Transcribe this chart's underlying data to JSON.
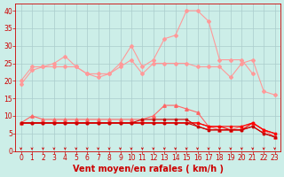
{
  "x": [
    0,
    1,
    2,
    3,
    4,
    5,
    6,
    7,
    8,
    9,
    10,
    11,
    12,
    13,
    14,
    15,
    16,
    17,
    18,
    19,
    20,
    21,
    22,
    23
  ],
  "series": [
    {
      "name": "line_upper_flat",
      "color": "#ff9999",
      "marker": "D",
      "markersize": 2,
      "linewidth": 0.8,
      "y": [
        19,
        23,
        24,
        24,
        24,
        24,
        22,
        22,
        22,
        24,
        26,
        22,
        25,
        25,
        25,
        25,
        24,
        24,
        24,
        21,
        25,
        26,
        17,
        16
      ]
    },
    {
      "name": "line_upper_peak",
      "color": "#ff9999",
      "marker": "D",
      "markersize": 2,
      "linewidth": 0.8,
      "y": [
        20,
        24,
        24,
        25,
        27,
        24,
        22,
        21,
        22,
        25,
        30,
        24,
        26,
        32,
        33,
        40,
        40,
        37,
        26,
        26,
        26,
        22,
        null,
        null
      ]
    },
    {
      "name": "line_mid",
      "color": "#ff6666",
      "marker": "^",
      "markersize": 2.5,
      "linewidth": 0.8,
      "y": [
        8,
        10,
        9,
        9,
        9,
        9,
        9,
        9,
        9,
        9,
        9,
        9,
        10,
        13,
        13,
        12,
        11,
        7,
        6,
        6,
        7,
        8,
        6,
        4
      ]
    },
    {
      "name": "line_low1",
      "color": "#ff0000",
      "marker": "s",
      "markersize": 1.5,
      "linewidth": 0.8,
      "y": [
        8,
        8,
        8,
        8,
        8,
        8,
        8,
        8,
        8,
        8,
        8,
        8,
        8,
        8,
        8,
        8,
        8,
        7,
        7,
        7,
        7,
        8,
        6,
        5
      ]
    },
    {
      "name": "line_low2",
      "color": "#ff0000",
      "marker": "s",
      "markersize": 1.5,
      "linewidth": 0.8,
      "y": [
        8,
        8,
        8,
        8,
        8,
        8,
        8,
        8,
        8,
        8,
        8,
        8,
        8,
        8,
        8,
        8,
        8,
        7,
        7,
        6,
        6,
        8,
        6,
        5
      ]
    },
    {
      "name": "line_low3",
      "color": "#cc0000",
      "marker": "s",
      "markersize": 1.5,
      "linewidth": 0.8,
      "y": [
        8,
        8,
        8,
        8,
        8,
        8,
        8,
        8,
        8,
        8,
        8,
        8,
        8,
        8,
        8,
        8,
        7,
        6,
        6,
        6,
        6,
        7,
        5,
        4
      ]
    },
    {
      "name": "line_low4",
      "color": "#cc0000",
      "marker": "s",
      "markersize": 1.5,
      "linewidth": 0.8,
      "y": [
        8,
        8,
        8,
        8,
        8,
        8,
        8,
        8,
        8,
        8,
        8,
        9,
        9,
        9,
        9,
        9,
        7,
        6,
        6,
        6,
        6,
        7,
        5,
        4
      ]
    }
  ],
  "xlim": [
    -0.5,
    23.5
  ],
  "ylim": [
    0,
    42
  ],
  "yticks": [
    0,
    5,
    10,
    15,
    20,
    25,
    30,
    35,
    40
  ],
  "xticks": [
    0,
    1,
    2,
    3,
    4,
    5,
    6,
    7,
    8,
    9,
    10,
    11,
    12,
    13,
    14,
    15,
    16,
    17,
    18,
    19,
    20,
    21,
    22,
    23
  ],
  "xlabel": "Vent moyen/en rafales ( km/h )",
  "background_color": "#cceee8",
  "grid_color": "#aacccc",
  "axis_color": "#cc0000",
  "tick_label_color": "#cc0000",
  "xlabel_color": "#cc0000",
  "xlabel_fontsize": 7,
  "tick_fontsize": 5.5,
  "arrow_color": "#cc0000"
}
